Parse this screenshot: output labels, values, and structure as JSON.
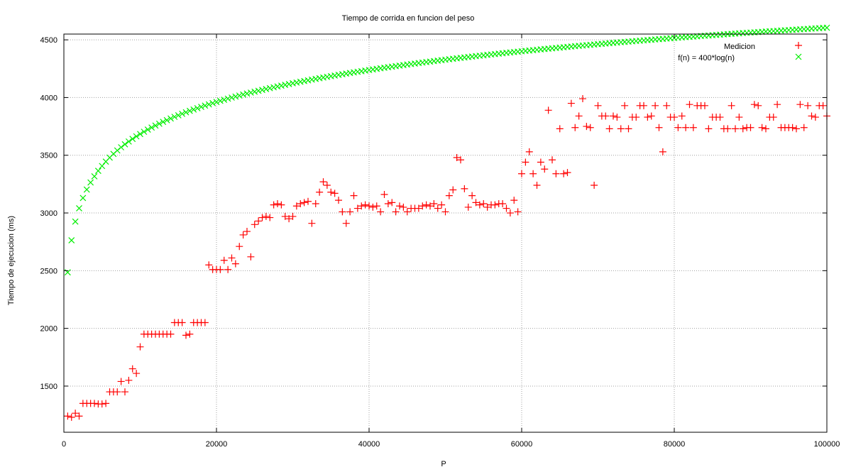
{
  "chart_data": {
    "type": "scatter",
    "title": "Tiempo de corrida en funcion del peso",
    "xlabel": "P",
    "ylabel": "Tiempo de ejecucion (ms)",
    "xlim": [
      0,
      100000
    ],
    "ylim": [
      1100,
      4550
    ],
    "x_ticks": [
      0,
      20000,
      40000,
      60000,
      80000,
      100000
    ],
    "x_tick_labels": [
      "0",
      "20000",
      "40000",
      "60000",
      "80000",
      "100000"
    ],
    "y_ticks": [
      1500,
      2000,
      2500,
      3000,
      3500,
      4000,
      4500
    ],
    "y_tick_labels": [
      "1500",
      "2000",
      "2500",
      "3000",
      "3500",
      "4000",
      "4500"
    ],
    "grid": true,
    "legend_position": "top-right",
    "series": [
      {
        "name": "Medicion",
        "marker": "plus",
        "color": "#ff0000",
        "points": [
          [
            500,
            1240
          ],
          [
            1000,
            1230
          ],
          [
            1500,
            1265
          ],
          [
            2000,
            1240
          ],
          [
            2500,
            1350
          ],
          [
            3000,
            1350
          ],
          [
            3500,
            1350
          ],
          [
            4000,
            1350
          ],
          [
            4500,
            1345
          ],
          [
            5000,
            1345
          ],
          [
            5500,
            1350
          ],
          [
            6000,
            1450
          ],
          [
            6500,
            1450
          ],
          [
            7000,
            1450
          ],
          [
            7500,
            1540
          ],
          [
            8000,
            1450
          ],
          [
            8500,
            1550
          ],
          [
            9000,
            1650
          ],
          [
            9500,
            1610
          ],
          [
            10000,
            1840
          ],
          [
            10500,
            1950
          ],
          [
            11000,
            1950
          ],
          [
            11500,
            1950
          ],
          [
            12000,
            1950
          ],
          [
            12500,
            1950
          ],
          [
            13000,
            1950
          ],
          [
            13500,
            1950
          ],
          [
            14000,
            1950
          ],
          [
            14500,
            2050
          ],
          [
            15000,
            2050
          ],
          [
            15500,
            2050
          ],
          [
            16000,
            1940
          ],
          [
            16500,
            1950
          ],
          [
            17000,
            2050
          ],
          [
            17500,
            2050
          ],
          [
            18000,
            2050
          ],
          [
            18500,
            2050
          ],
          [
            19000,
            2550
          ],
          [
            19500,
            2510
          ],
          [
            20000,
            2510
          ],
          [
            20500,
            2510
          ],
          [
            21000,
            2590
          ],
          [
            21500,
            2510
          ],
          [
            22000,
            2610
          ],
          [
            22500,
            2560
          ],
          [
            23000,
            2710
          ],
          [
            23500,
            2810
          ],
          [
            24000,
            2840
          ],
          [
            24500,
            2620
          ],
          [
            25000,
            2900
          ],
          [
            25500,
            2930
          ],
          [
            26000,
            2960
          ],
          [
            26500,
            2970
          ],
          [
            27000,
            2960
          ],
          [
            27500,
            3070
          ],
          [
            28000,
            3080
          ],
          [
            28500,
            3070
          ],
          [
            29000,
            2970
          ],
          [
            29500,
            2950
          ],
          [
            30000,
            2970
          ],
          [
            30500,
            3060
          ],
          [
            31000,
            3080
          ],
          [
            31500,
            3090
          ],
          [
            32000,
            3100
          ],
          [
            32500,
            2910
          ],
          [
            33000,
            3080
          ],
          [
            33500,
            3180
          ],
          [
            34000,
            3270
          ],
          [
            34500,
            3240
          ],
          [
            35000,
            3180
          ],
          [
            35500,
            3170
          ],
          [
            36000,
            3110
          ],
          [
            36500,
            3010
          ],
          [
            37000,
            2910
          ],
          [
            37500,
            3010
          ],
          [
            38000,
            3150
          ],
          [
            38500,
            3040
          ],
          [
            39000,
            3060
          ],
          [
            39500,
            3070
          ],
          [
            40000,
            3060
          ],
          [
            40500,
            3050
          ],
          [
            41000,
            3060
          ],
          [
            41500,
            3010
          ],
          [
            42000,
            3160
          ],
          [
            42500,
            3080
          ],
          [
            43000,
            3090
          ],
          [
            43500,
            3010
          ],
          [
            44000,
            3060
          ],
          [
            44500,
            3050
          ],
          [
            45000,
            3010
          ],
          [
            45500,
            3040
          ],
          [
            46000,
            3040
          ],
          [
            46500,
            3040
          ],
          [
            47000,
            3060
          ],
          [
            47500,
            3070
          ],
          [
            48000,
            3060
          ],
          [
            48500,
            3080
          ],
          [
            49000,
            3040
          ],
          [
            49500,
            3070
          ],
          [
            50000,
            3010
          ],
          [
            50500,
            3150
          ],
          [
            51000,
            3200
          ],
          [
            51500,
            3480
          ],
          [
            52000,
            3460
          ],
          [
            52500,
            3210
          ],
          [
            53000,
            3050
          ],
          [
            53500,
            3150
          ],
          [
            54000,
            3090
          ],
          [
            54500,
            3070
          ],
          [
            55000,
            3080
          ],
          [
            55500,
            3050
          ],
          [
            56000,
            3070
          ],
          [
            56500,
            3070
          ],
          [
            57000,
            3080
          ],
          [
            57500,
            3080
          ],
          [
            58000,
            3040
          ],
          [
            58500,
            3000
          ],
          [
            59000,
            3110
          ],
          [
            59500,
            3010
          ],
          [
            60000,
            3340
          ],
          [
            60500,
            3440
          ],
          [
            61000,
            3530
          ],
          [
            61500,
            3340
          ],
          [
            62000,
            3240
          ],
          [
            62500,
            3440
          ],
          [
            63000,
            3380
          ],
          [
            63500,
            3890
          ],
          [
            64000,
            3460
          ],
          [
            64500,
            3340
          ],
          [
            65000,
            3730
          ],
          [
            65500,
            3340
          ],
          [
            66000,
            3350
          ],
          [
            66500,
            3950
          ],
          [
            67000,
            3740
          ],
          [
            67500,
            3840
          ],
          [
            68000,
            3990
          ],
          [
            68500,
            3750
          ],
          [
            69000,
            3740
          ],
          [
            69500,
            3240
          ],
          [
            70000,
            3930
          ],
          [
            70500,
            3840
          ],
          [
            71000,
            3840
          ],
          [
            71500,
            3730
          ],
          [
            72000,
            3840
          ],
          [
            72500,
            3830
          ],
          [
            73000,
            3730
          ],
          [
            73500,
            3930
          ],
          [
            74000,
            3730
          ],
          [
            74500,
            3830
          ],
          [
            75000,
            3830
          ],
          [
            75500,
            3930
          ],
          [
            76000,
            3930
          ],
          [
            76500,
            3830
          ],
          [
            77000,
            3840
          ],
          [
            77500,
            3930
          ],
          [
            78000,
            3740
          ],
          [
            78500,
            3530
          ],
          [
            79000,
            3930
          ],
          [
            79500,
            3830
          ],
          [
            80000,
            3830
          ],
          [
            80500,
            3740
          ],
          [
            81000,
            3840
          ],
          [
            81500,
            3740
          ],
          [
            82000,
            3940
          ],
          [
            82500,
            3740
          ],
          [
            83000,
            3930
          ],
          [
            83500,
            3930
          ],
          [
            84000,
            3930
          ],
          [
            84500,
            3730
          ],
          [
            85000,
            3830
          ],
          [
            85500,
            3830
          ],
          [
            86000,
            3830
          ],
          [
            86500,
            3730
          ],
          [
            87000,
            3730
          ],
          [
            87500,
            3930
          ],
          [
            88000,
            3730
          ],
          [
            88500,
            3830
          ],
          [
            89000,
            3730
          ],
          [
            89500,
            3740
          ],
          [
            90000,
            3740
          ],
          [
            90500,
            3940
          ],
          [
            91000,
            3930
          ],
          [
            91500,
            3740
          ],
          [
            92000,
            3730
          ],
          [
            92500,
            3830
          ],
          [
            93000,
            3830
          ],
          [
            93500,
            3940
          ],
          [
            94000,
            3740
          ],
          [
            94500,
            3740
          ],
          [
            95000,
            3740
          ],
          [
            95500,
            3740
          ],
          [
            96000,
            3730
          ],
          [
            96500,
            3940
          ],
          [
            97000,
            3740
          ],
          [
            97500,
            3930
          ],
          [
            98000,
            3840
          ],
          [
            98500,
            3830
          ],
          [
            99000,
            3930
          ],
          [
            99500,
            3930
          ],
          [
            100000,
            3840
          ]
        ]
      },
      {
        "name": "f(n) = 400*log(n)",
        "marker": "cross",
        "color": "#00ee00",
        "function": "400*ln(x)",
        "x_start": 500,
        "x_end": 100000,
        "x_step": 500
      }
    ]
  }
}
